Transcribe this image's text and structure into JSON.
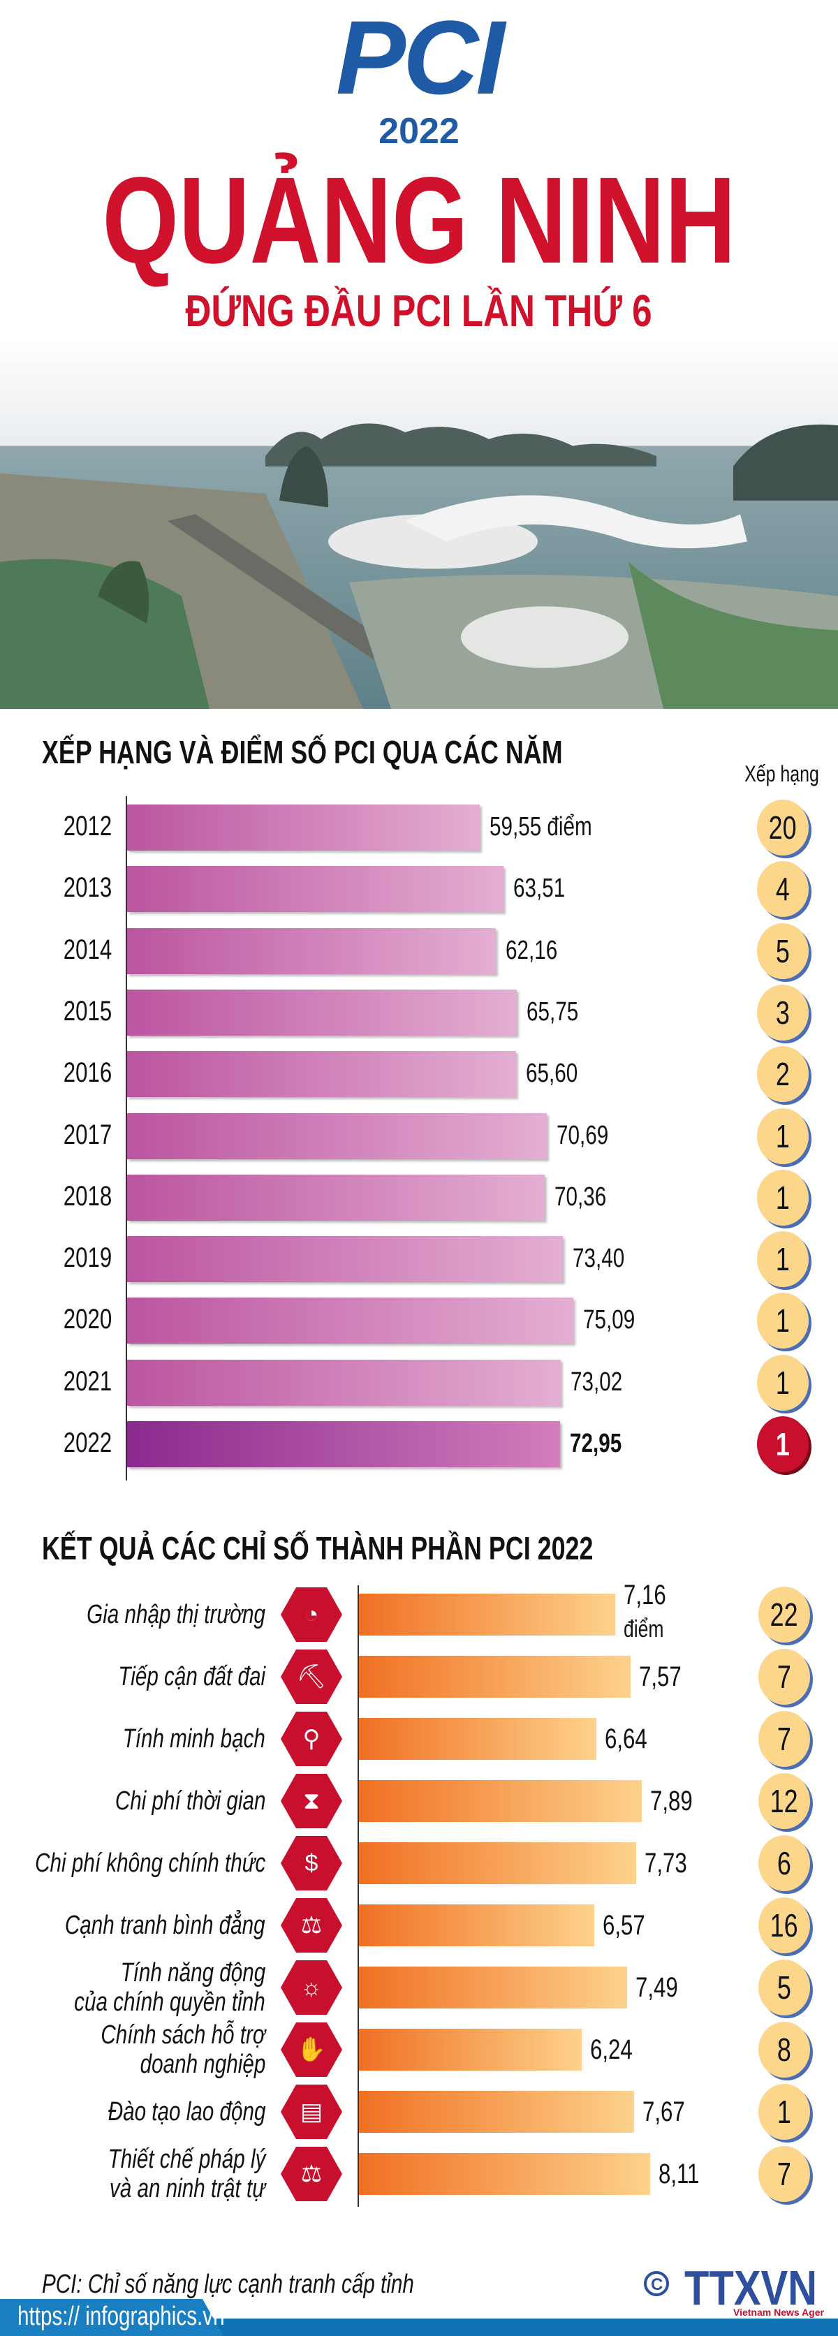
{
  "header": {
    "logo": "PCI",
    "logo_year": "2022",
    "title": "QUẢNG NINH",
    "subtitle": "ĐỨNG ĐẦU PCI LẦN THỨ 6"
  },
  "section1": {
    "title": "XẾP HẠNG VÀ ĐIỂM SỐ PCI QUA CÁC NĂM",
    "rank_header": "Xếp hạng",
    "unit": "điểm"
  },
  "section2": {
    "title": "KẾT QUẢ CÁC CHỈ SỐ THÀNH PHẦN PCI 2022",
    "unit": "điểm"
  },
  "chart_data": [
    {
      "type": "bar",
      "orientation": "horizontal",
      "title": "XẾP HẠNG VÀ ĐIỂM SỐ PCI QUA CÁC NĂM",
      "categories": [
        "2012",
        "2013",
        "2014",
        "2015",
        "2016",
        "2017",
        "2018",
        "2019",
        "2020",
        "2021",
        "2022"
      ],
      "values": [
        59.55,
        63.51,
        62.16,
        65.75,
        65.6,
        70.69,
        70.36,
        73.4,
        75.09,
        73.02,
        72.95
      ],
      "labels": [
        "59,55 điểm",
        "63,51",
        "62,16",
        "65,75",
        "65,60",
        "70,69",
        "70,36",
        "73,40",
        "75,09",
        "73,02",
        "72,95"
      ],
      "ranks": [
        "20",
        "4",
        "5",
        "3",
        "2",
        "1",
        "1",
        "1",
        "1",
        "1",
        "1"
      ],
      "highlight": "2022",
      "colors": {
        "bar": "#bb55a0",
        "highlight": "#8a2a8e",
        "rank": "#fcd68a",
        "rank_highlight": "#c8102e"
      }
    },
    {
      "type": "bar",
      "orientation": "horizontal",
      "title": "KẾT QUẢ CÁC CHỈ SỐ THÀNH PHẦN PCI 2022",
      "categories": [
        [
          "Gia nhập thị trường"
        ],
        [
          "Tiếp cận đất đai"
        ],
        [
          "Tính minh bạch"
        ],
        [
          "Chi phí thời gian"
        ],
        [
          "Chi phí không chính thức"
        ],
        [
          "Cạnh tranh bình đẳng"
        ],
        [
          "Tính năng động",
          "của chính quyền tỉnh"
        ],
        [
          "Chính sách hỗ trợ",
          "doanh nghiệp"
        ],
        [
          "Đào tạo lao động"
        ],
        [
          "Thiết chế pháp lý",
          "và an ninh trật tự"
        ]
      ],
      "values": [
        7.16,
        7.57,
        6.64,
        7.89,
        7.73,
        6.57,
        7.49,
        6.24,
        7.67,
        8.11
      ],
      "labels": [
        "7,16",
        "7,57",
        "6,64",
        "7,89",
        "7,73",
        "6,57",
        "7,49",
        "6,24",
        "7,67",
        "8,11"
      ],
      "ranks": [
        "22",
        "7",
        "7",
        "12",
        "6",
        "16",
        "5",
        "8",
        "1",
        "7"
      ],
      "icons": [
        "market-entry-icon",
        "land-access-icon",
        "transparency-icon",
        "hourglass-icon",
        "money-icon",
        "equal-competition-icon",
        "lightbulb-icon",
        "handshake-icon",
        "training-icon",
        "scales-icon"
      ],
      "colors": {
        "bar": "#f07022",
        "rank": "#fcd68a",
        "icon_bg": "#c8102e"
      }
    }
  ],
  "footer": {
    "note": "PCI: Chỉ số năng lực cạnh tranh cấp tỉnh",
    "url": "https:// infographics.vn",
    "copyright": "©",
    "agency_logo": "TTXVN",
    "agency_tagline": "Vietnam News Agency"
  }
}
